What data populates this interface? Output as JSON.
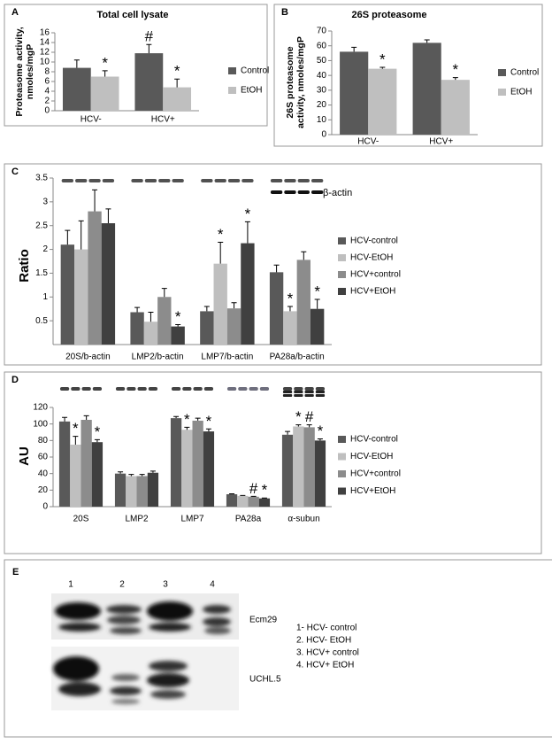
{
  "chart_data": [
    {
      "type": "bar",
      "panel": "A",
      "title": "Total cell lysate",
      "y_label": [
        "Proteasome activity,",
        "nmoles/mgP"
      ],
      "categories": [
        "HCV-",
        "HCV+"
      ],
      "ylim": [
        0,
        16
      ],
      "yticks": [
        0,
        2,
        4,
        6,
        8,
        10,
        12,
        14,
        16
      ],
      "series": [
        {
          "name": "Control",
          "color": "#595959",
          "values": [
            8.8,
            11.8
          ],
          "errors": [
            1.6,
            1.8
          ],
          "annotations": [
            null,
            "#"
          ]
        },
        {
          "name": "EtOH",
          "color": "#bfbfbf",
          "values": [
            7.0,
            4.8
          ],
          "errors": [
            1.2,
            1.7
          ],
          "annotations": [
            "*",
            "*"
          ]
        }
      ]
    },
    {
      "type": "bar",
      "panel": "B",
      "title": "26S proteasome",
      "y_label": [
        "26S proteasome",
        "activity, nmoles/mgP"
      ],
      "categories": [
        "HCV-",
        "HCV+"
      ],
      "ylim": [
        0,
        70
      ],
      "yticks": [
        0,
        10,
        20,
        30,
        40,
        50,
        60,
        70
      ],
      "series": [
        {
          "name": "Control",
          "color": "#595959",
          "values": [
            56,
            62
          ],
          "errors": [
            3,
            2
          ],
          "annotations": [
            null,
            null
          ]
        },
        {
          "name": "EtOH",
          "color": "#bfbfbf",
          "values": [
            44.5,
            37
          ],
          "errors": [
            1,
            1.5
          ],
          "annotations": [
            "*",
            "*"
          ]
        }
      ]
    },
    {
      "type": "bar",
      "panel": "C",
      "blot_label": "β-actin",
      "y_label": "Ratio",
      "categories": [
        "20S/b-actin",
        "LMP2/b-actin",
        "LMP7/b-actin",
        "PA28a/b-actin"
      ],
      "ylim": [
        0,
        3.5
      ],
      "yticks": [
        0.5,
        1,
        1.5,
        2,
        2.5,
        3,
        3.5
      ],
      "series": [
        {
          "name": "HCV-control",
          "color": "#595959",
          "values": [
            2.1,
            0.68,
            0.7,
            1.52
          ],
          "errors": [
            0.3,
            0.1,
            0.1,
            0.15
          ],
          "annotations": [
            null,
            null,
            null,
            null
          ]
        },
        {
          "name": "HCV-EtOH",
          "color": "#bfbfbf",
          "values": [
            2.0,
            0.48,
            1.7,
            0.7
          ],
          "errors": [
            0.6,
            0.2,
            0.45,
            0.1
          ],
          "annotations": [
            null,
            null,
            "*",
            "*"
          ]
        },
        {
          "name": "HCV+control",
          "color": "#8c8c8c",
          "values": [
            2.8,
            1.0,
            0.76,
            1.78
          ],
          "errors": [
            0.45,
            0.18,
            0.12,
            0.17
          ],
          "annotations": [
            null,
            null,
            null,
            null
          ]
        },
        {
          "name": "HCV+EtOH",
          "color": "#404040",
          "values": [
            2.55,
            0.38,
            2.13,
            0.75
          ],
          "errors": [
            0.3,
            0.04,
            0.45,
            0.2
          ],
          "annotations": [
            null,
            "*",
            "*",
            "*"
          ]
        }
      ]
    },
    {
      "type": "bar",
      "panel": "D",
      "y_label": "AU",
      "categories": [
        "20S",
        "LMP2",
        "LMP7",
        "PA28a",
        "α-subun"
      ],
      "ylim": [
        0,
        120
      ],
      "yticks": [
        0,
        20,
        40,
        60,
        80,
        100,
        120
      ],
      "series": [
        {
          "name": "HCV-control",
          "color": "#595959",
          "values": [
            103,
            40,
            107,
            15,
            87
          ],
          "errors": [
            5,
            2,
            2,
            0.5,
            4
          ],
          "annotations": [
            null,
            null,
            null,
            null,
            null
          ]
        },
        {
          "name": "HCV-EtOH",
          "color": "#bfbfbf",
          "values": [
            75,
            37,
            93,
            13,
            97
          ],
          "errors": [
            10,
            2,
            3,
            0.5,
            2
          ],
          "annotations": [
            "*",
            null,
            "*",
            null,
            "*"
          ]
        },
        {
          "name": "HCV+control",
          "color": "#8c8c8c",
          "values": [
            105,
            37,
            104,
            12,
            96
          ],
          "errors": [
            5,
            2,
            3,
            0.5,
            3
          ],
          "annotations": [
            null,
            null,
            null,
            "#",
            "#"
          ]
        },
        {
          "name": "HCV+EtOH",
          "color": "#404040",
          "values": [
            78,
            41,
            91,
            10,
            80
          ],
          "errors": [
            3,
            2,
            3,
            0.5,
            2
          ],
          "annotations": [
            "*",
            null,
            "*",
            "*",
            "*"
          ]
        }
      ]
    }
  ],
  "blot": {
    "panel": "E",
    "lanes": [
      "1",
      "2",
      "3",
      "4"
    ],
    "rows": [
      "Ecm29",
      "UCHL.5"
    ],
    "legend": [
      "1- HCV- control",
      "2. HCV- EtOH",
      "3. HCV+ control",
      "4. HCV+ EtOH"
    ]
  }
}
